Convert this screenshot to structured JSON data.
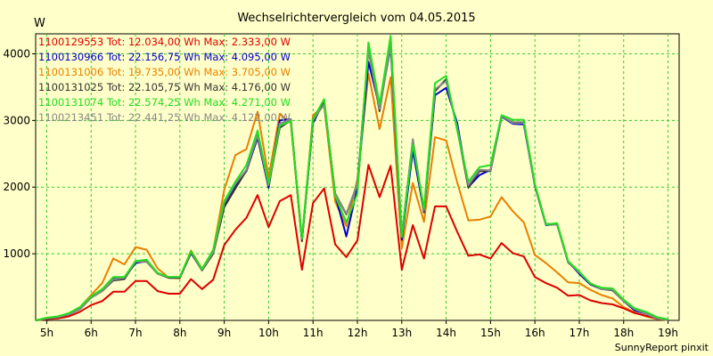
{
  "chart_data": {
    "type": "line",
    "title": "Wechselrichtervergleich vom 04.05.2015",
    "ylabel": "W",
    "xlabel": "",
    "footer": "SunnyReport pinxit",
    "ylim": [
      0,
      4300
    ],
    "xlim": [
      4.75,
      19.25
    ],
    "yticks": [
      1000,
      2000,
      3000,
      4000
    ],
    "xtick_values": [
      5,
      6,
      7,
      8,
      9,
      10,
      11,
      12,
      13,
      14,
      15,
      16,
      17,
      18,
      19
    ],
    "xtick_labels": [
      "5h",
      "6h",
      "7h",
      "8h",
      "9h",
      "10h",
      "11h",
      "12h",
      "13h",
      "14h",
      "15h",
      "16h",
      "17h",
      "18h",
      "19h"
    ],
    "grid": true,
    "legend_position": "top-left",
    "x": [
      4.75,
      5.0,
      5.25,
      5.5,
      5.75,
      6.0,
      6.25,
      6.5,
      6.75,
      7.0,
      7.25,
      7.5,
      7.75,
      8.0,
      8.25,
      8.5,
      8.75,
      9.0,
      9.25,
      9.5,
      9.75,
      10.0,
      10.25,
      10.5,
      10.75,
      11.0,
      11.25,
      11.5,
      11.75,
      12.0,
      12.25,
      12.5,
      12.75,
      13.0,
      13.25,
      13.5,
      13.75,
      14.0,
      14.25,
      14.5,
      14.75,
      15.0,
      15.25,
      15.5,
      15.75,
      16.0,
      16.25,
      16.5,
      16.75,
      17.0,
      17.25,
      17.5,
      17.75,
      18.0,
      18.25,
      18.5,
      18.75,
      19.0
    ],
    "series": [
      {
        "name": "1100129553",
        "label": "1100129553 Tot: 12.034,00 Wh Max: 2.333,00 W",
        "color": "#dd0000",
        "values": [
          0,
          20,
          30,
          60,
          130,
          230,
          290,
          430,
          430,
          590,
          590,
          440,
          400,
          400,
          620,
          470,
          610,
          1130,
          1360,
          1540,
          1880,
          1400,
          1790,
          1880,
          760,
          1760,
          1980,
          1140,
          950,
          1200,
          2333,
          1850,
          2320,
          760,
          1430,
          930,
          1710,
          1710,
          1330,
          970,
          990,
          930,
          1160,
          1010,
          960,
          650,
          560,
          490,
          370,
          380,
          300,
          260,
          240,
          180,
          110,
          70,
          30,
          10
        ]
      },
      {
        "name": "1100130966",
        "label": "1100130966 Tot: 22.156,75 Wh Max: 4.095,00 W",
        "color": "#0000cc",
        "values": [
          0,
          30,
          50,
          90,
          180,
          350,
          450,
          620,
          640,
          860,
          890,
          710,
          640,
          640,
          1010,
          760,
          1020,
          1740,
          2030,
          2240,
          2740,
          1990,
          3000,
          3020,
          1200,
          2960,
          3290,
          1880,
          1260,
          1990,
          3880,
          3200,
          4095,
          1210,
          2550,
          1630,
          3380,
          3490,
          2960,
          2000,
          2180,
          2260,
          3060,
          2950,
          2940,
          2020,
          1430,
          1450,
          880,
          700,
          540,
          470,
          460,
          290,
          150,
          100,
          30,
          10
        ]
      },
      {
        "name": "1100131006",
        "label": "1100131006 Tot: 19.735,00 Wh Max: 3.705,00 W",
        "color": "#e88000",
        "values": [
          0,
          20,
          40,
          80,
          200,
          380,
          560,
          930,
          840,
          1100,
          1060,
          780,
          640,
          630,
          1050,
          770,
          1050,
          1960,
          2480,
          2570,
          3130,
          2150,
          3100,
          2960,
          1190,
          3080,
          3220,
          1780,
          1410,
          2120,
          3705,
          2870,
          3650,
          1080,
          2060,
          1480,
          2750,
          2700,
          2070,
          1500,
          1510,
          1560,
          1850,
          1640,
          1470,
          980,
          860,
          720,
          570,
          560,
          460,
          380,
          330,
          200,
          120,
          60,
          20,
          5
        ]
      },
      {
        "name": "1100131025",
        "label": "1100131025 Tot: 22.105,75 Wh Max: 4.176,00 W",
        "color": "#333333",
        "values": [
          0,
          30,
          50,
          90,
          170,
          340,
          440,
          600,
          620,
          880,
          880,
          700,
          640,
          640,
          1020,
          750,
          1000,
          1700,
          1980,
          2250,
          2770,
          2020,
          2890,
          3000,
          1190,
          2990,
          3270,
          1900,
          1590,
          2050,
          4060,
          3140,
          4176,
          1270,
          2690,
          1620,
          3440,
          3620,
          2880,
          1990,
          2240,
          2240,
          3060,
          2970,
          2970,
          2020,
          1440,
          1440,
          870,
          720,
          550,
          470,
          450,
          290,
          170,
          100,
          30,
          10
        ]
      },
      {
        "name": "1100131074",
        "label": "1100131074 Tot: 22.574,25 Wh Max: 4.271,00 W",
        "color": "#22dd22",
        "values": [
          0,
          40,
          60,
          110,
          200,
          360,
          470,
          650,
          650,
          890,
          910,
          710,
          650,
          650,
          1040,
          770,
          1060,
          1790,
          2080,
          2330,
          2850,
          2050,
          2920,
          2990,
          1230,
          3020,
          3320,
          1870,
          1470,
          1900,
          4170,
          3240,
          4271,
          1250,
          2640,
          1680,
          3560,
          3670,
          2850,
          2080,
          2300,
          2330,
          3080,
          3010,
          3010,
          2050,
          1440,
          1460,
          890,
          730,
          550,
          490,
          480,
          310,
          180,
          130,
          50,
          15
        ]
      },
      {
        "name": "1100213451",
        "label": "1100213451 Tot: 22.441,25 Wh Max: 4.122,00 W",
        "color": "#888888",
        "values": [
          0,
          30,
          50,
          90,
          170,
          340,
          440,
          610,
          640,
          880,
          880,
          700,
          650,
          650,
          1030,
          760,
          1020,
          1760,
          2050,
          2260,
          2780,
          2030,
          2950,
          3020,
          1220,
          3010,
          3240,
          1910,
          1600,
          2050,
          4050,
          3170,
          4122,
          1270,
          2720,
          1650,
          3470,
          3590,
          2900,
          2030,
          2260,
          2250,
          3070,
          2960,
          2960,
          2030,
          1450,
          1440,
          880,
          720,
          560,
          470,
          460,
          290,
          170,
          100,
          30,
          10
        ]
      }
    ]
  }
}
